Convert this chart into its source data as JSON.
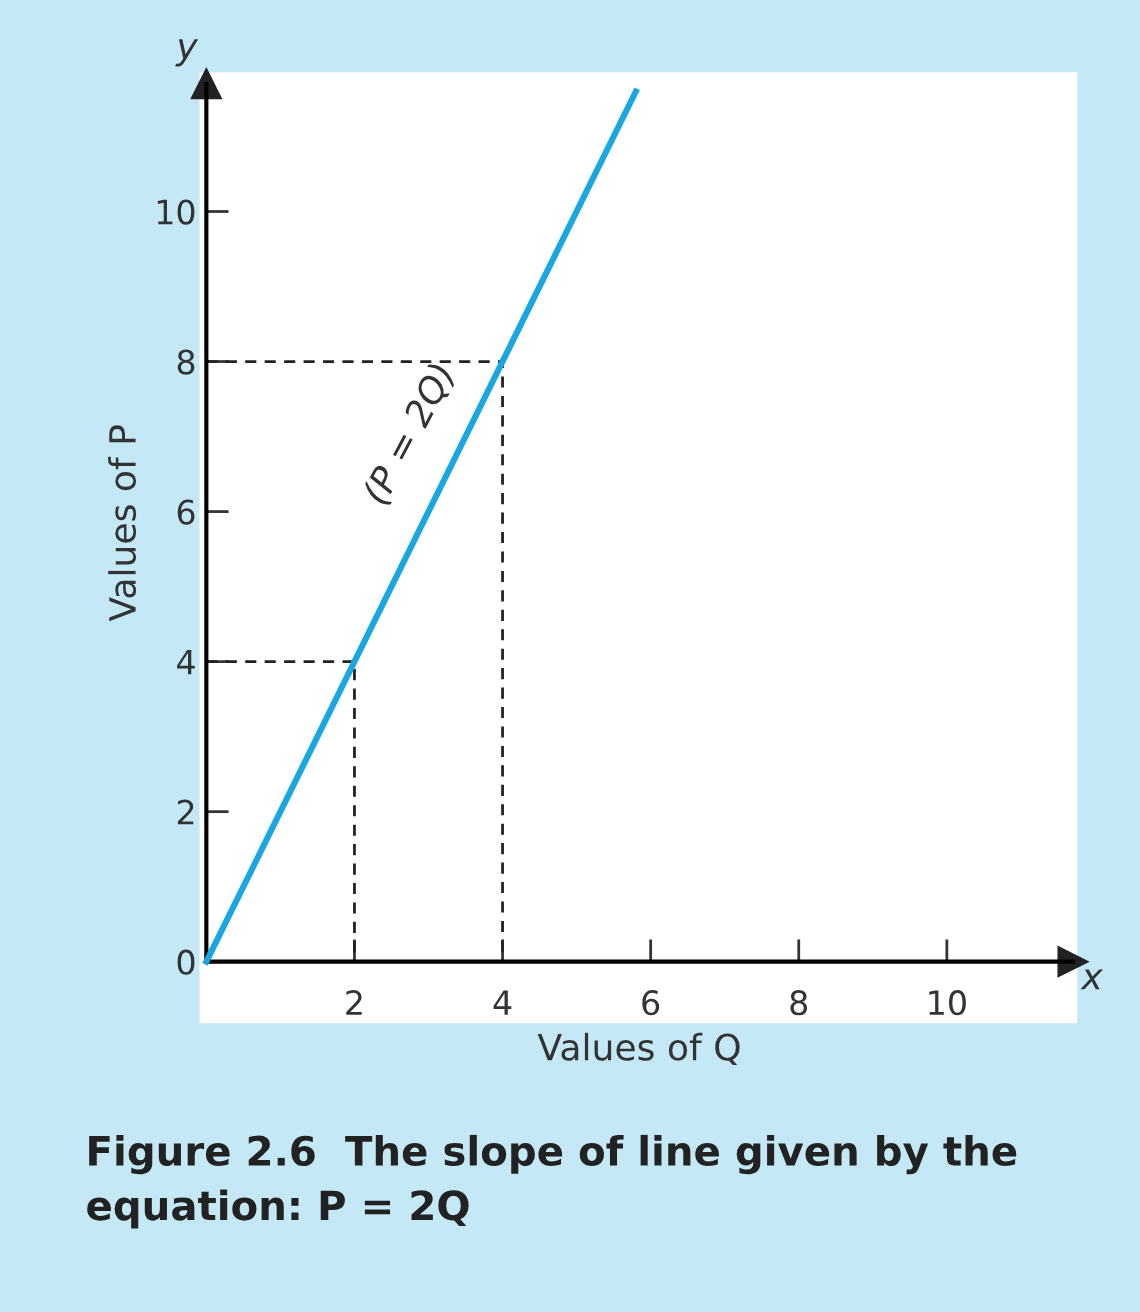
{
  "chart_data": {
    "type": "line",
    "title": "Figure 2.6  The slope of line given by the equation: P = 2Q",
    "xlabel": "Values of Q",
    "ylabel": "Values of P",
    "x": [
      0,
      5.8
    ],
    "series": [
      {
        "color": "#1aa7e0",
        "values": [
          0,
          11.6
        ],
        "line_style": "solid"
      },
      {
        "color": "#222222",
        "x": [
          0,
          2,
          2
        ],
        "values": [
          4,
          4,
          0
        ],
        "line_style": "dashed"
      },
      {
        "color": "#222222",
        "x": [
          0,
          4,
          4
        ],
        "values": [
          8,
          8,
          0
        ],
        "line_style": "dashed"
      }
    ],
    "annotations": [
      "(P = 2Q)",
      "x",
      "y"
    ],
    "xlim": [
      0,
      11.7
    ],
    "ylim": [
      0,
      11.7
    ],
    "xticks": [
      2,
      4,
      6,
      8,
      10
    ],
    "yticks": [
      0,
      2,
      4,
      6,
      8,
      10
    ],
    "grid": false,
    "legend": false,
    "marker": "none"
  }
}
